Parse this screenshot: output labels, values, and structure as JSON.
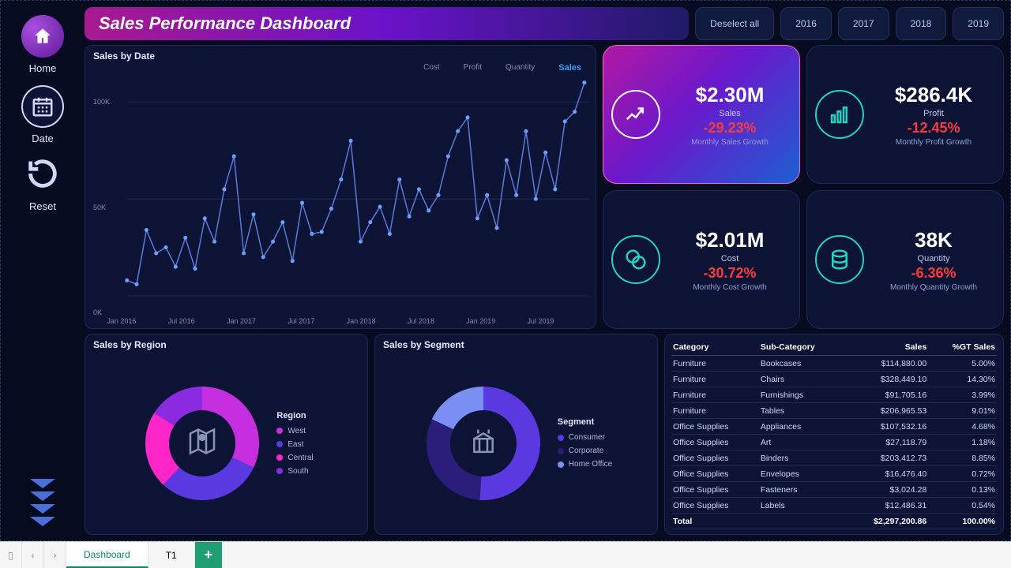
{
  "colors": {
    "bg": "#070b1f",
    "panel": "#0c1334",
    "accentCyan": "#23d4c4",
    "red": "#ff3b3b",
    "line": "#5a78d8"
  },
  "sidebar": {
    "items": [
      {
        "label": "Home",
        "icon": "home"
      },
      {
        "label": "Date",
        "icon": "calendar"
      },
      {
        "label": "Reset",
        "icon": "reset"
      }
    ]
  },
  "header": {
    "title": "Sales Performance Dashboard"
  },
  "yearFilter": {
    "deselect": "Deselect all",
    "years": [
      "2016",
      "2017",
      "2018",
      "2019"
    ]
  },
  "lineChart": {
    "title": "Sales by Date",
    "series": [
      "Cost",
      "Profit",
      "Quantity",
      "Sales"
    ],
    "active": "Sales",
    "ylim": [
      0,
      110000
    ],
    "yticks": [
      {
        "v": 0,
        "l": "0K"
      },
      {
        "v": 50000,
        "l": "50K"
      },
      {
        "v": 100000,
        "l": "100K"
      }
    ],
    "xticks": [
      "Jan 2016",
      "Jul 2016",
      "Jan 2017",
      "Jul 2017",
      "Jan 2018",
      "Jul 2018",
      "Jan 2019",
      "Jul 2019"
    ],
    "points": [
      8,
      6,
      34,
      22,
      25,
      15,
      30,
      14,
      40,
      28,
      55,
      72,
      22,
      42,
      20,
      28,
      38,
      18,
      48,
      32,
      33,
      45,
      60,
      80,
      28,
      38,
      46,
      32,
      60,
      41,
      55,
      44,
      52,
      72,
      85,
      92,
      40,
      52,
      35,
      70,
      52,
      85,
      50,
      74,
      55,
      90,
      95,
      110
    ],
    "line_color": "#5a78d8",
    "point_color": "#6aa0ff",
    "grid": "#1c2b55"
  },
  "kpi": [
    {
      "value": "$2.30M",
      "label": "Sales",
      "pct": "-29.23%",
      "sub": "Monthly Sales Growth",
      "icon": "sales",
      "primary": true
    },
    {
      "value": "$286.4K",
      "label": "Profit",
      "pct": "-12.45%",
      "sub": "Monthly Profit Growth",
      "icon": "profit"
    },
    {
      "value": "$2.01M",
      "label": "Cost",
      "pct": "-30.72%",
      "sub": "Monthly Cost Growth",
      "icon": "cost"
    },
    {
      "value": "38K",
      "label": "Quantity",
      "pct": "-6.36%",
      "sub": "Monthly Quantity Growth",
      "icon": "qty"
    }
  ],
  "region": {
    "title": "Sales by Region",
    "legend_title": "Region",
    "center_icon": "map",
    "slices": [
      {
        "label": "West",
        "value": 32,
        "color": "#c62fe0"
      },
      {
        "label": "East",
        "value": 30,
        "color": "#5a3ae0"
      },
      {
        "label": "Central",
        "value": 22,
        "color": "#ff26c9"
      },
      {
        "label": "South",
        "value": 16,
        "color": "#8a2be2"
      }
    ]
  },
  "segment": {
    "title": "Sales by Segment",
    "legend_title": "Segment",
    "center_icon": "box",
    "slices": [
      {
        "label": "Consumer",
        "value": 51,
        "color": "#5a3ae0"
      },
      {
        "label": "Corporate",
        "value": 31,
        "color": "#2a1e7a"
      },
      {
        "label": "Home Office",
        "value": 18,
        "color": "#7b8ff2"
      }
    ]
  },
  "table": {
    "columns": [
      "Category",
      "Sub-Category",
      "Sales",
      "%GT Sales"
    ],
    "rows": [
      [
        "Furniture",
        "Bookcases",
        "$114,880.00",
        "5.00%"
      ],
      [
        "Furniture",
        "Chairs",
        "$328,449.10",
        "14.30%"
      ],
      [
        "Furniture",
        "Furnishings",
        "$91,705.16",
        "3.99%"
      ],
      [
        "Furniture",
        "Tables",
        "$206,965.53",
        "9.01%"
      ],
      [
        "Office Supplies",
        "Appliances",
        "$107,532.16",
        "4.68%"
      ],
      [
        "Office Supplies",
        "Art",
        "$27,118.79",
        "1.18%"
      ],
      [
        "Office Supplies",
        "Binders",
        "$203,412.73",
        "8.85%"
      ],
      [
        "Office Supplies",
        "Envelopes",
        "$16,476.40",
        "0.72%"
      ],
      [
        "Office Supplies",
        "Fasteners",
        "$3,024.28",
        "0.13%"
      ],
      [
        "Office Supplies",
        "Labels",
        "$12,486.31",
        "0.54%"
      ]
    ],
    "total": [
      "Total",
      "",
      "$2,297,200.86",
      "100.00%"
    ]
  },
  "tabs": {
    "items": [
      "Dashboard",
      "T1"
    ],
    "active": 0,
    "add": "+"
  }
}
